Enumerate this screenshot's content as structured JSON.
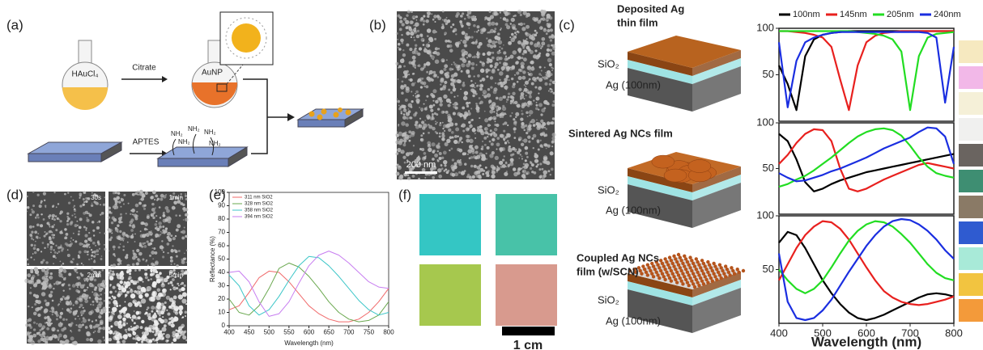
{
  "figure": {
    "panels": [
      "(a)",
      "(b)",
      "(c)",
      "(d)",
      "(e)",
      "(f)"
    ],
    "a": {
      "precursor": "HAuCl₄",
      "step1": "Citrate",
      "product": "AuNP",
      "step2": "APTES",
      "amine": "NH₂"
    },
    "b": {
      "scale": "200 nm"
    },
    "c": {
      "film1": [
        "Deposited Ag",
        "thin film"
      ],
      "film2": [
        "Sintered Ag NCs film"
      ],
      "film3": [
        "Coupled Ag NCs",
        "film (w/SCN)"
      ],
      "oxide": "SiO₂",
      "base": "Ag (100nm)"
    },
    "d": {
      "times": [
        "30s",
        "1min",
        "2min",
        "5min"
      ]
    },
    "f": {
      "scale": "1 cm"
    }
  },
  "chart_data": [
    {
      "type": "line",
      "xlabel": "Wavelength (nm)",
      "ylabel": "Reflectance (%)",
      "x": [
        400,
        425,
        450,
        475,
        500,
        525,
        550,
        575,
        600,
        625,
        650,
        675,
        700,
        725,
        750,
        775,
        800
      ],
      "xlim": [
        400,
        800
      ],
      "ylim": [
        0,
        100
      ],
      "xticks": [
        400,
        450,
        500,
        550,
        600,
        650,
        700,
        750,
        800
      ],
      "yticks": [
        0,
        10,
        20,
        30,
        40,
        50,
        60,
        70,
        80,
        90,
        100
      ],
      "series": [
        {
          "name": "311 nm SiO2",
          "color": "#f0696a",
          "values": [
            12,
            15,
            25,
            36,
            41,
            40,
            33,
            24,
            15,
            9,
            5,
            3,
            3,
            5,
            10,
            18,
            28
          ]
        },
        {
          "name": "328 nm SiO2",
          "color": "#6aa84f",
          "values": [
            20,
            10,
            8,
            15,
            28,
            43,
            47,
            44,
            37,
            28,
            18,
            10,
            5,
            3,
            4,
            8,
            18
          ]
        },
        {
          "name": "358 nm SiO2",
          "color": "#3cc6c8",
          "values": [
            38,
            30,
            15,
            8,
            12,
            22,
            34,
            45,
            52,
            51,
            45,
            37,
            28,
            19,
            12,
            8,
            10
          ]
        },
        {
          "name": "394 nm SiO2",
          "color": "#c77df0",
          "values": [
            40,
            41,
            33,
            18,
            7,
            9,
            18,
            32,
            45,
            53,
            56,
            53,
            47,
            40,
            33,
            29,
            28
          ]
        }
      ]
    },
    {
      "type": "line",
      "x": [
        400,
        420,
        440,
        460,
        480,
        500,
        520,
        540,
        560,
        580,
        600,
        620,
        640,
        660,
        680,
        700,
        720,
        740,
        760,
        780,
        800
      ],
      "xlim": [
        400,
        800
      ],
      "ylim": [
        0,
        100
      ],
      "yticks": [
        50,
        100
      ],
      "series": [
        {
          "name": "100nm",
          "color": "#000000",
          "values": [
            60,
            40,
            12,
            70,
            88,
            93,
            95,
            96,
            97,
            97,
            97,
            97,
            97,
            97,
            97,
            97,
            97,
            97,
            97,
            97,
            97
          ]
        },
        {
          "name": "145nm",
          "color": "#e8201e",
          "values": [
            97,
            97,
            96,
            95,
            93,
            90,
            80,
            45,
            12,
            60,
            85,
            92,
            95,
            96,
            97,
            97,
            97,
            97,
            97,
            97,
            97
          ]
        },
        {
          "name": "205nm",
          "color": "#22dd22",
          "values": [
            97,
            97,
            97,
            97,
            97,
            97,
            97,
            97,
            97,
            96,
            95,
            94,
            92,
            88,
            75,
            12,
            70,
            90,
            94,
            95,
            96
          ]
        },
        {
          "name": "240nm",
          "color": "#1a2ee0",
          "values": [
            85,
            15,
            65,
            85,
            90,
            93,
            95,
            96,
            96,
            96,
            96,
            96,
            96,
            96,
            96,
            96,
            96,
            95,
            90,
            20,
            80
          ]
        }
      ]
    },
    {
      "type": "line",
      "x": [
        400,
        420,
        440,
        460,
        480,
        500,
        520,
        540,
        560,
        580,
        600,
        620,
        640,
        660,
        680,
        700,
        720,
        740,
        760,
        780,
        800
      ],
      "xlim": [
        400,
        800
      ],
      "ylim": [
        0,
        100
      ],
      "yticks": [
        50,
        100
      ],
      "series": [
        {
          "color": "#000000",
          "values": [
            88,
            80,
            60,
            35,
            25,
            28,
            33,
            37,
            40,
            43,
            46,
            48,
            50,
            52,
            54,
            56,
            58,
            60,
            62,
            64,
            66
          ]
        },
        {
          "color": "#e8201e",
          "values": [
            55,
            65,
            78,
            88,
            93,
            92,
            80,
            50,
            28,
            25,
            28,
            33,
            38,
            42,
            46,
            50,
            54,
            56,
            54,
            52,
            50
          ]
        },
        {
          "color": "#22dd22",
          "values": [
            30,
            33,
            38,
            42,
            48,
            55,
            62,
            70,
            78,
            85,
            90,
            93,
            94,
            92,
            86,
            75,
            62,
            52,
            45,
            42,
            40
          ]
        },
        {
          "color": "#1a2ee0",
          "values": [
            45,
            40,
            36,
            37,
            40,
            43,
            47,
            50,
            54,
            58,
            62,
            67,
            72,
            76,
            80,
            84,
            90,
            95,
            94,
            85,
            55
          ]
        }
      ]
    },
    {
      "type": "line",
      "xlabel": "Wavelength (nm)",
      "x": [
        400,
        420,
        440,
        460,
        480,
        500,
        520,
        540,
        560,
        580,
        600,
        620,
        640,
        660,
        680,
        700,
        720,
        740,
        760,
        780,
        800
      ],
      "xlim": [
        400,
        800
      ],
      "ylim": [
        0,
        100
      ],
      "xticks": [
        400,
        500,
        600,
        700,
        800
      ],
      "yticks": [
        50,
        100
      ],
      "series": [
        {
          "color": "#000000",
          "values": [
            75,
            85,
            82,
            70,
            55,
            40,
            28,
            18,
            10,
            5,
            3,
            5,
            8,
            12,
            16,
            20,
            24,
            27,
            28,
            27,
            25
          ]
        },
        {
          "color": "#e8201e",
          "values": [
            40,
            55,
            70,
            82,
            90,
            95,
            94,
            88,
            78,
            65,
            52,
            40,
            30,
            24,
            20,
            18,
            17,
            18,
            20,
            22,
            25
          ]
        },
        {
          "color": "#22dd22",
          "values": [
            50,
            40,
            32,
            28,
            32,
            40,
            52,
            65,
            77,
            86,
            92,
            95,
            94,
            90,
            83,
            75,
            65,
            55,
            47,
            42,
            40
          ]
        },
        {
          "color": "#1a2ee0",
          "values": [
            65,
            20,
            5,
            3,
            5,
            12,
            22,
            35,
            48,
            60,
            72,
            82,
            90,
            95,
            97,
            96,
            92,
            86,
            78,
            68,
            60
          ]
        }
      ]
    }
  ]
}
